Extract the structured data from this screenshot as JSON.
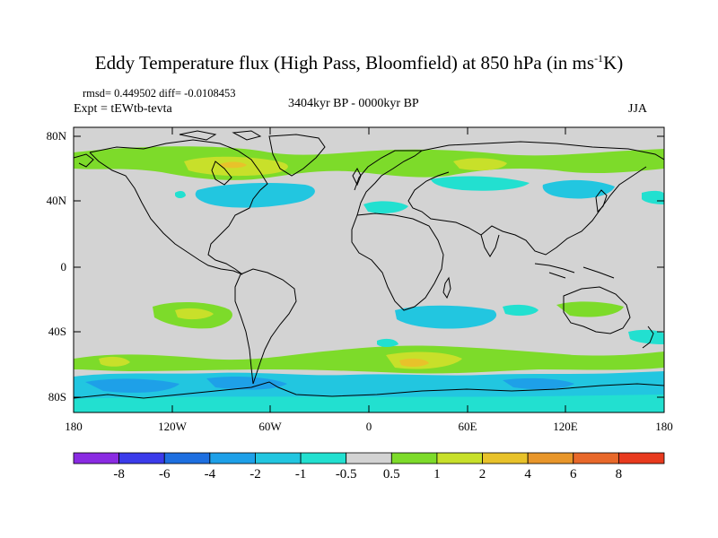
{
  "title": {
    "prefix": "Eddy Temperature flux (High Pass, Bloomfield) at 850 hPa (in ms",
    "superscript": "-1",
    "suffix": "K)"
  },
  "stats": {
    "rmsd_diff": "rmsd= 0.449502 diff= -0.0108453"
  },
  "experiment": "Expt = tEWtb-tevta",
  "period": "3404kyr BP - 0000kyr BP",
  "season": "JJA",
  "latitude_labels": [
    "80N",
    "40N",
    "0",
    "40S",
    "80S"
  ],
  "longitude_labels": [
    "180",
    "120W",
    "60W",
    "0",
    "60E",
    "120E",
    "180"
  ],
  "colorbar": {
    "labels": [
      "-8",
      "-6",
      "-4",
      "-2",
      "-1",
      "-0.5",
      "0.5",
      "1",
      "2",
      "4",
      "6",
      "8"
    ],
    "colors": [
      "#8a2be2",
      "#3b3bea",
      "#1e6fe0",
      "#1ea0e8",
      "#22c6e0",
      "#22e0d0",
      "#d3d3d3",
      "#7ddb2a",
      "#c8e02a",
      "#e8c22a",
      "#e8962a",
      "#e8682a",
      "#e83a1e"
    ]
  },
  "colors": {
    "land_background": "#d3d3d3",
    "coastline": "#000000",
    "positive_1": "#7ddb2a",
    "positive_2": "#c8e02a",
    "positive_3": "#e8c22a",
    "positive_4": "#e8962a",
    "negative_1": "#22e0d0",
    "negative_2": "#22c6e0",
    "negative_3": "#1ea0e8"
  }
}
